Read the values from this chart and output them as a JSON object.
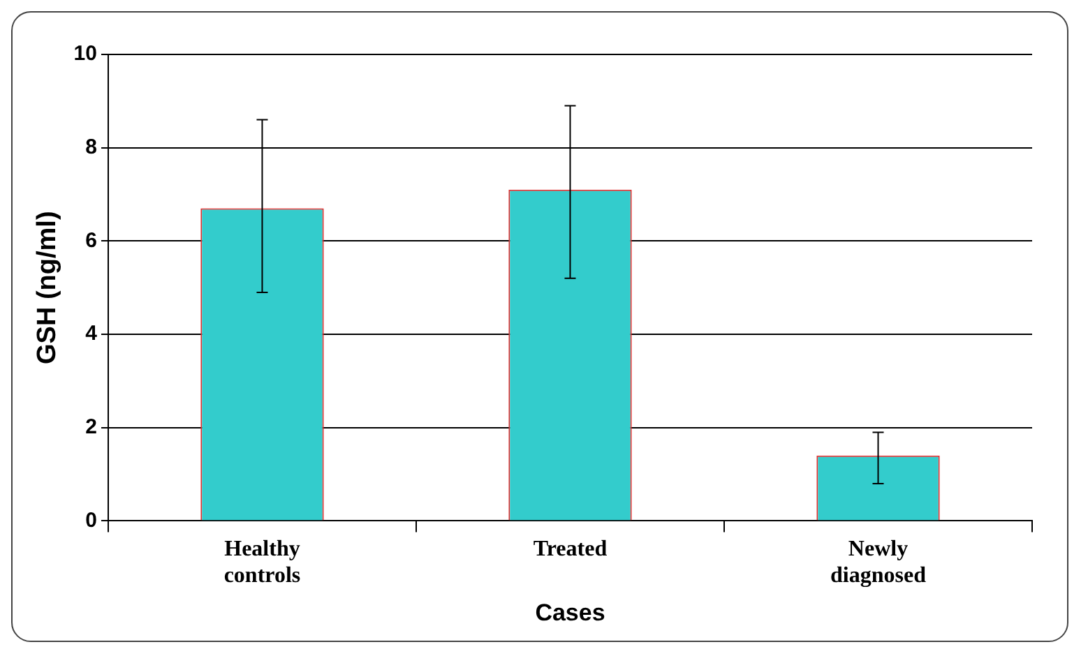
{
  "chart_data": {
    "type": "bar",
    "xlabel": "Cases",
    "ylabel": "GSH (ng/ml)",
    "categories": [
      "Healthy controls",
      "Treated",
      "Newly diagnosed"
    ],
    "values": [
      6.7,
      7.1,
      1.4
    ],
    "errors": [
      [
        4.9,
        8.6
      ],
      [
        5.2,
        8.9
      ],
      [
        0.8,
        1.9
      ]
    ],
    "color": "#33cccc",
    "ylim": [
      0,
      10
    ],
    "yticks": [
      0,
      2,
      4,
      6,
      8,
      10
    ],
    "grid": "y",
    "legend": false
  }
}
